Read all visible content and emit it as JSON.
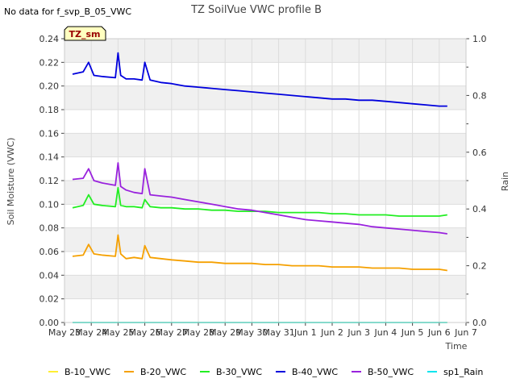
{
  "header": {
    "no_data_note": "No data for f_svp_B_05_VWC",
    "title": "TZ SoilVue VWC profile B",
    "site_badge": "TZ_sm"
  },
  "chart_data": {
    "type": "line",
    "title": "TZ SoilVue VWC profile B",
    "xlabel": "Time",
    "ylabel": "Soil Moisture (VWC)",
    "y2label": "Rain",
    "ylim": [
      0.0,
      0.24
    ],
    "y2lim": [
      0.0,
      1.0
    ],
    "xlim": [
      0,
      15
    ],
    "grid": true,
    "legend_position": "bottom",
    "x_tick_labels": [
      "May 23",
      "May 24",
      "May 25",
      "May 26",
      "May 27",
      "May 28",
      "May 29",
      "May 30",
      "May 31",
      "Jun 1",
      "Jun 2",
      "Jun 3",
      "Jun 4",
      "Jun 5",
      "Jun 6",
      "Jun 7"
    ],
    "y_tick_labels": [
      "0.00",
      "0.02",
      "0.04",
      "0.06",
      "0.08",
      "0.10",
      "0.12",
      "0.14",
      "0.16",
      "0.18",
      "0.20",
      "0.22",
      "0.24"
    ],
    "y2_tick_labels": [
      "0.0",
      "0.2",
      "0.4",
      "0.6",
      "0.8",
      "1.0"
    ],
    "series": [
      {
        "name": "B-10_VWC",
        "color": "#ffee33",
        "axis": "left",
        "x": [
          0.3,
          14.3
        ],
        "y": [
          0.0,
          0.0
        ]
      },
      {
        "name": "B-20_VWC",
        "color": "#f5a000",
        "axis": "left",
        "x": [
          0.3,
          0.7,
          0.9,
          1.1,
          1.4,
          1.9,
          2.0,
          2.1,
          2.3,
          2.6,
          2.9,
          3.0,
          3.2,
          3.6,
          4.0,
          4.5,
          5.0,
          5.5,
          6.0,
          6.5,
          7.0,
          7.5,
          8.0,
          8.5,
          9.0,
          9.5,
          10.0,
          10.5,
          11.0,
          11.5,
          12.0,
          12.5,
          13.0,
          13.5,
          14.0,
          14.3
        ],
        "y": [
          0.056,
          0.057,
          0.066,
          0.058,
          0.057,
          0.056,
          0.074,
          0.058,
          0.054,
          0.055,
          0.054,
          0.065,
          0.055,
          0.054,
          0.053,
          0.052,
          0.051,
          0.051,
          0.05,
          0.05,
          0.05,
          0.049,
          0.049,
          0.048,
          0.048,
          0.048,
          0.047,
          0.047,
          0.047,
          0.046,
          0.046,
          0.046,
          0.045,
          0.045,
          0.045,
          0.044
        ]
      },
      {
        "name": "B-30_VWC",
        "color": "#22ee22",
        "axis": "left",
        "x": [
          0.3,
          0.7,
          0.9,
          1.1,
          1.4,
          1.9,
          2.0,
          2.1,
          2.3,
          2.6,
          2.9,
          3.0,
          3.2,
          3.6,
          4.0,
          4.5,
          5.0,
          5.5,
          6.0,
          6.5,
          7.0,
          7.5,
          8.0,
          8.5,
          9.0,
          9.5,
          10.0,
          10.5,
          11.0,
          11.5,
          12.0,
          12.5,
          13.0,
          13.5,
          14.0,
          14.3
        ],
        "y": [
          0.097,
          0.099,
          0.108,
          0.1,
          0.099,
          0.098,
          0.114,
          0.099,
          0.098,
          0.098,
          0.097,
          0.104,
          0.098,
          0.097,
          0.097,
          0.096,
          0.096,
          0.095,
          0.095,
          0.094,
          0.094,
          0.094,
          0.093,
          0.093,
          0.093,
          0.093,
          0.092,
          0.092,
          0.091,
          0.091,
          0.091,
          0.09,
          0.09,
          0.09,
          0.09,
          0.091
        ]
      },
      {
        "name": "B-40_VWC",
        "color": "#0000dd",
        "axis": "left",
        "x": [
          0.3,
          0.7,
          0.9,
          1.1,
          1.4,
          1.9,
          2.0,
          2.1,
          2.3,
          2.6,
          2.9,
          3.0,
          3.2,
          3.6,
          4.0,
          4.5,
          5.0,
          5.5,
          6.0,
          6.5,
          7.0,
          7.5,
          8.0,
          8.5,
          9.0,
          9.5,
          10.0,
          10.5,
          11.0,
          11.5,
          12.0,
          12.5,
          13.0,
          13.5,
          14.0,
          14.3
        ],
        "y": [
          0.21,
          0.212,
          0.22,
          0.209,
          0.208,
          0.207,
          0.228,
          0.209,
          0.206,
          0.206,
          0.205,
          0.22,
          0.205,
          0.203,
          0.202,
          0.2,
          0.199,
          0.198,
          0.197,
          0.196,
          0.195,
          0.194,
          0.193,
          0.192,
          0.191,
          0.19,
          0.189,
          0.189,
          0.188,
          0.188,
          0.187,
          0.186,
          0.185,
          0.184,
          0.183,
          0.183
        ]
      },
      {
        "name": "B-50_VWC",
        "color": "#9922dd",
        "axis": "left",
        "x": [
          0.3,
          0.7,
          0.9,
          1.1,
          1.4,
          1.9,
          2.0,
          2.1,
          2.3,
          2.6,
          2.9,
          3.0,
          3.2,
          3.6,
          4.0,
          4.5,
          5.0,
          5.5,
          6.0,
          6.5,
          7.0,
          7.5,
          8.0,
          8.5,
          9.0,
          9.5,
          10.0,
          10.5,
          11.0,
          11.5,
          12.0,
          12.5,
          13.0,
          13.5,
          14.0,
          14.3
        ],
        "y": [
          0.121,
          0.122,
          0.13,
          0.12,
          0.118,
          0.116,
          0.135,
          0.115,
          0.112,
          0.11,
          0.109,
          0.13,
          0.108,
          0.107,
          0.106,
          0.104,
          0.102,
          0.1,
          0.098,
          0.096,
          0.095,
          0.093,
          0.091,
          0.089,
          0.087,
          0.086,
          0.085,
          0.084,
          0.083,
          0.081,
          0.08,
          0.079,
          0.078,
          0.077,
          0.076,
          0.075
        ]
      },
      {
        "name": "sp1_Rain",
        "color": "#00e5ee",
        "axis": "right",
        "x": [
          0.3,
          14.3
        ],
        "y": [
          0.0,
          0.0
        ]
      }
    ]
  }
}
